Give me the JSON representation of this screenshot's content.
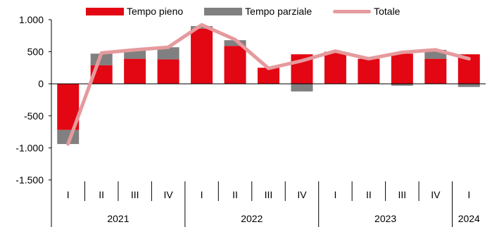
{
  "chart_data": {
    "type": "bar",
    "stacked": true,
    "categories": [
      "I",
      "II",
      "III",
      "IV",
      "I",
      "II",
      "III",
      "IV",
      "I",
      "II",
      "III",
      "IV",
      "I"
    ],
    "years": [
      {
        "label": "2021",
        "quarters": 4
      },
      {
        "label": "2022",
        "quarters": 4
      },
      {
        "label": "2023",
        "quarters": 4
      },
      {
        "label": "2024",
        "quarters": 1
      }
    ],
    "series": [
      {
        "name": "Tempo pieno",
        "kind": "bar",
        "color": "#e30613",
        "values": [
          -720,
          290,
          390,
          380,
          860,
          590,
          250,
          460,
          500,
          390,
          470,
          390,
          460
        ]
      },
      {
        "name": "Tempo parziale",
        "kind": "bar",
        "color": "#808080",
        "values": [
          -220,
          180,
          130,
          190,
          40,
          90,
          0,
          -120,
          0,
          0,
          -30,
          140,
          -50
        ]
      },
      {
        "name": "Totale",
        "kind": "line",
        "color": "#e59a9d",
        "values": [
          -940,
          480,
          530,
          570,
          920,
          690,
          240,
          360,
          510,
          390,
          490,
          530,
          390
        ]
      }
    ],
    "yticks": [
      1000,
      500,
      0,
      -500,
      -1000,
      -1500
    ],
    "ytick_labels": [
      "1.000",
      "500",
      "0",
      "-500",
      "-1.000",
      "-1.500"
    ],
    "ylim": [
      -1500,
      1000
    ],
    "grid": false,
    "legend_position": "top"
  }
}
